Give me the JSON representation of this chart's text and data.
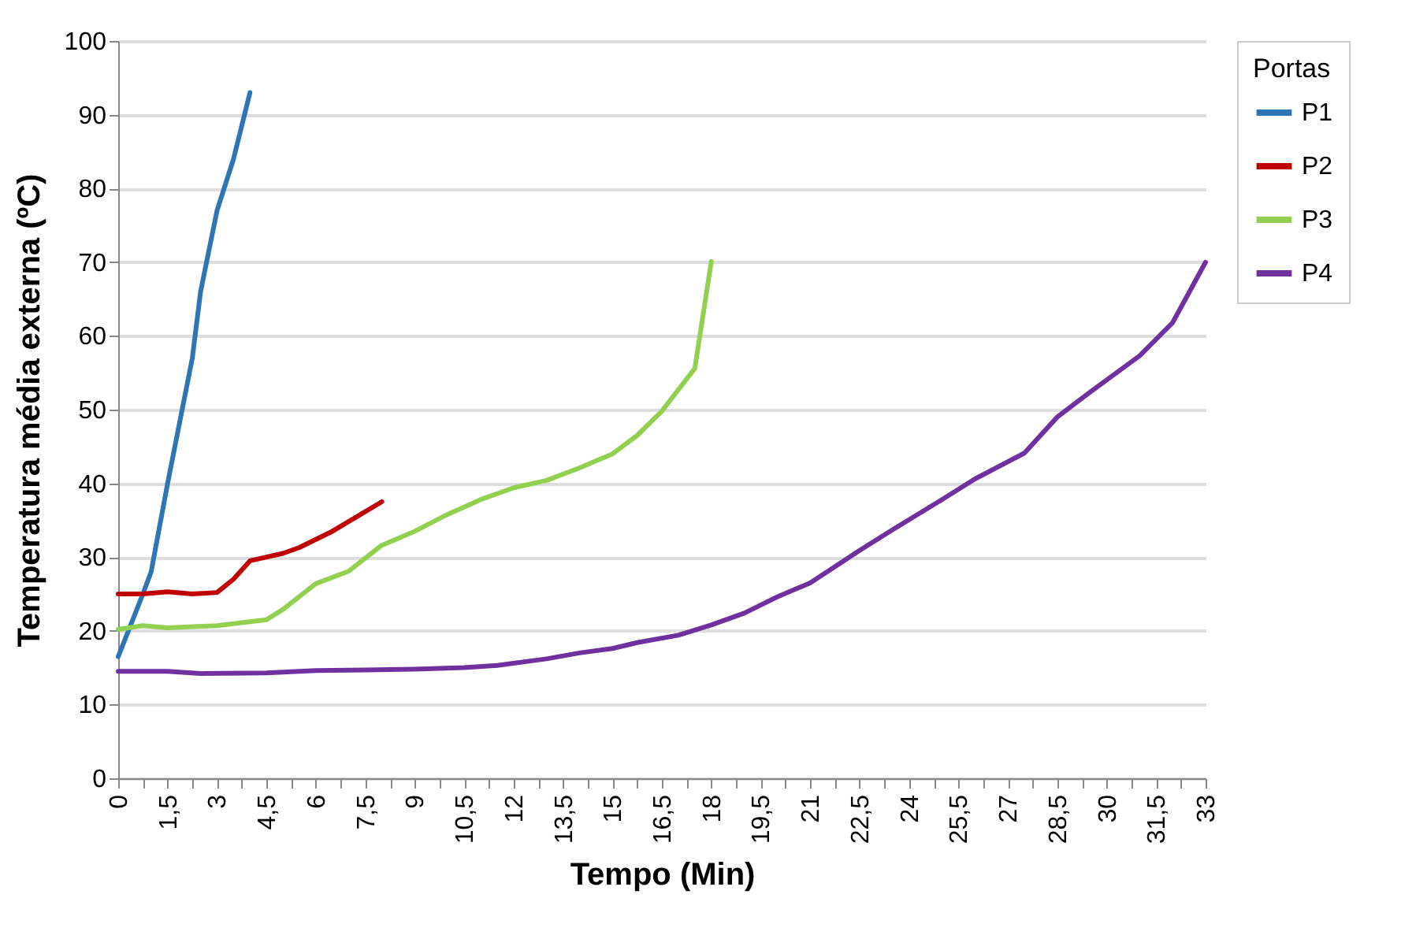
{
  "chart_data": {
    "type": "line",
    "xlabel": "Tempo (Min)",
    "ylabel": "Temperatura  média externa  (ºC)",
    "legend_title": "Portas",
    "legend": "right",
    "grid": "y",
    "line_style": "solid",
    "marker": "none",
    "xlim": [
      0,
      33
    ],
    "ylim": [
      0,
      100
    ],
    "yticks": [
      0,
      10,
      20,
      30,
      40,
      50,
      60,
      70,
      80,
      90,
      100
    ],
    "xticks": [
      {
        "value": 0,
        "label": "0"
      },
      {
        "value": 0.75,
        "label": null
      },
      {
        "value": 1.5,
        "label": "1,5"
      },
      {
        "value": 2.25,
        "label": null
      },
      {
        "value": 3,
        "label": "3"
      },
      {
        "value": 3.75,
        "label": null
      },
      {
        "value": 4.5,
        "label": "4,5"
      },
      {
        "value": 5.25,
        "label": null
      },
      {
        "value": 6,
        "label": "6"
      },
      {
        "value": 6.75,
        "label": null
      },
      {
        "value": 7.5,
        "label": "7,5"
      },
      {
        "value": 8.25,
        "label": null
      },
      {
        "value": 9,
        "label": "9"
      },
      {
        "value": 9.75,
        "label": null
      },
      {
        "value": 10.5,
        "label": "10,5"
      },
      {
        "value": 11.25,
        "label": null
      },
      {
        "value": 12,
        "label": "12"
      },
      {
        "value": 12.75,
        "label": null
      },
      {
        "value": 13.5,
        "label": "13,5"
      },
      {
        "value": 14.25,
        "label": null
      },
      {
        "value": 15,
        "label": "15"
      },
      {
        "value": 15.75,
        "label": null
      },
      {
        "value": 16.5,
        "label": "16,5"
      },
      {
        "value": 17.25,
        "label": null
      },
      {
        "value": 18,
        "label": "18"
      },
      {
        "value": 18.75,
        "label": null
      },
      {
        "value": 19.5,
        "label": "19,5"
      },
      {
        "value": 20.25,
        "label": null
      },
      {
        "value": 21,
        "label": "21"
      },
      {
        "value": 21.75,
        "label": null
      },
      {
        "value": 22.5,
        "label": "22,5"
      },
      {
        "value": 23.25,
        "label": null
      },
      {
        "value": 24,
        "label": "24"
      },
      {
        "value": 24.75,
        "label": null
      },
      {
        "value": 25.5,
        "label": "25,5"
      },
      {
        "value": 26.25,
        "label": null
      },
      {
        "value": 27,
        "label": "27"
      },
      {
        "value": 27.75,
        "label": null
      },
      {
        "value": 28.5,
        "label": "28,5"
      },
      {
        "value": 29.25,
        "label": null
      },
      {
        "value": 30,
        "label": "30"
      },
      {
        "value": 30.75,
        "label": null
      },
      {
        "value": 31.5,
        "label": "31,5"
      },
      {
        "value": 32.25,
        "label": null
      },
      {
        "value": 33,
        "label": "33"
      }
    ],
    "series": [
      {
        "name": "P1",
        "color": "#2e75b6",
        "x": [
          0,
          0.75,
          1,
          1.5,
          2.25,
          2.5,
          3,
          3.5,
          4
        ],
        "values": [
          16.5,
          25,
          28,
          40,
          57,
          66,
          77,
          84,
          93
        ]
      },
      {
        "name": "P2",
        "color": "#c00000",
        "x": [
          0,
          0.75,
          1.5,
          2.25,
          3,
          3.5,
          4,
          5,
          5.5,
          6.5,
          8
        ],
        "values": [
          25,
          25,
          25.3,
          25,
          25.2,
          27,
          29.5,
          30.5,
          31.3,
          33.5,
          37.5
        ]
      },
      {
        "name": "P3",
        "color": "#92d050",
        "x": [
          0,
          0.75,
          1.5,
          3,
          4.5,
          5,
          6,
          7,
          8,
          9,
          10,
          11,
          12,
          13,
          14,
          15,
          15.75,
          16.5,
          17.5,
          18
        ],
        "values": [
          20.2,
          20.7,
          20.4,
          20.7,
          21.5,
          22.9,
          26.4,
          28.1,
          31.6,
          33.5,
          35.8,
          37.8,
          39.4,
          40.4,
          42.1,
          44,
          46.5,
          49.8,
          55.6,
          70.1
        ]
      },
      {
        "name": "P4",
        "color": "#7030a0",
        "x": [
          0,
          1.5,
          2.5,
          4.5,
          6,
          7.5,
          9,
          10.5,
          11.5,
          13,
          14,
          15,
          15.75,
          17,
          18,
          19,
          20,
          21,
          22.5,
          23.5,
          25,
          26,
          27.5,
          28.5,
          29.5,
          31,
          32,
          33
        ],
        "values": [
          14.5,
          14.5,
          14.2,
          14.3,
          14.6,
          14.7,
          14.8,
          15,
          15.3,
          16.2,
          17,
          17.6,
          18.4,
          19.4,
          20.8,
          22.4,
          24.6,
          26.5,
          30.9,
          33.7,
          37.8,
          40.6,
          44.1,
          49,
          52.4,
          57.3,
          61.8,
          70
        ]
      }
    ]
  }
}
